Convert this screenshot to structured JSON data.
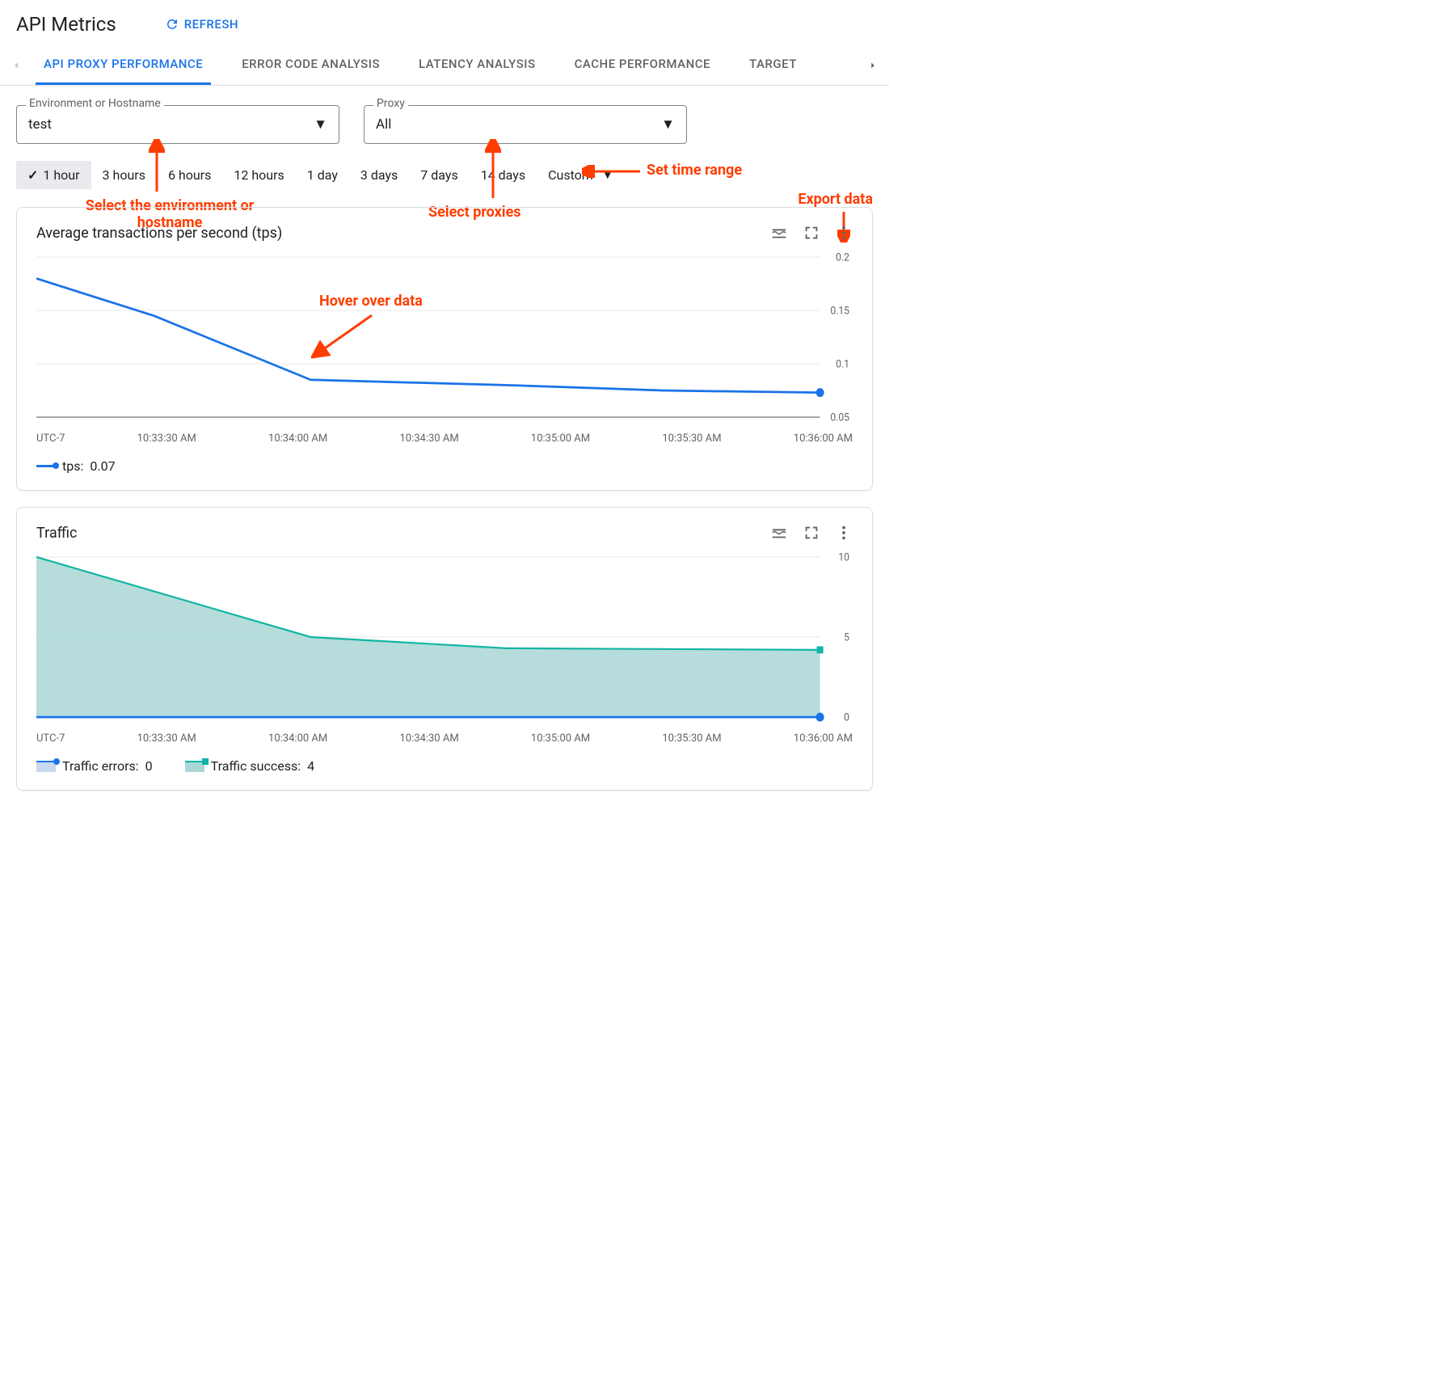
{
  "page": {
    "title": "API Metrics",
    "refresh": "REFRESH"
  },
  "tabs": {
    "items": [
      "API PROXY PERFORMANCE",
      "ERROR CODE ANALYSIS",
      "LATENCY ANALYSIS",
      "CACHE PERFORMANCE",
      "TARGET"
    ],
    "active_index": 0
  },
  "filters": {
    "env": {
      "label": "Environment or Hostname",
      "value": "test"
    },
    "proxy": {
      "label": "Proxy",
      "value": "All"
    }
  },
  "time_ranges": {
    "options": [
      "1 hour",
      "3 hours",
      "6 hours",
      "12 hours",
      "1 day",
      "3 days",
      "7 days",
      "14 days",
      "Custom"
    ],
    "selected_index": 0
  },
  "annotations": {
    "env": "Select the environment or hostname",
    "proxy": "Select proxies",
    "time": "Set time range",
    "hover": "Hover over data",
    "export": "Export data",
    "color": "#ff3d00"
  },
  "x_axis": {
    "tz": "UTC-7",
    "ticks": [
      "10:33:30 AM",
      "10:34:00 AM",
      "10:34:30 AM",
      "10:35:00 AM",
      "10:35:30 AM",
      "10:36:00 AM"
    ]
  },
  "chart_tps": {
    "title": "Average transactions per second (tps)",
    "type": "line",
    "y_ticks": [
      0.2,
      0.15,
      0.1,
      0.05
    ],
    "ylim": [
      0.05,
      0.2
    ],
    "series": {
      "label": "tps:",
      "value": "0.07",
      "color": "#1a73e8",
      "points_norm": [
        [
          0,
          0.18
        ],
        [
          0.15,
          0.145
        ],
        [
          0.35,
          0.085
        ],
        [
          0.6,
          0.08
        ],
        [
          0.8,
          0.075
        ],
        [
          1,
          0.073
        ]
      ]
    },
    "grid_color": "#e8eaed",
    "axis_color": "#5f6368"
  },
  "chart_traffic": {
    "title": "Traffic",
    "type": "area",
    "y_ticks": [
      10,
      5,
      0
    ],
    "ylim": [
      0,
      10
    ],
    "series_success": {
      "label": "Traffic success:",
      "value": "4",
      "line_color": "#12b5a5",
      "fill_color": "#a9d7d5",
      "points_norm": [
        [
          0,
          10
        ],
        [
          0.35,
          5
        ],
        [
          0.6,
          4.3
        ],
        [
          1,
          4.2
        ]
      ]
    },
    "series_errors": {
      "label": "Traffic errors:",
      "value": "0",
      "line_color": "#1a73e8",
      "fill_color": "#c9d9f0",
      "points_norm": [
        [
          0,
          0
        ],
        [
          1,
          0
        ]
      ]
    },
    "grid_color": "#e8eaed"
  }
}
